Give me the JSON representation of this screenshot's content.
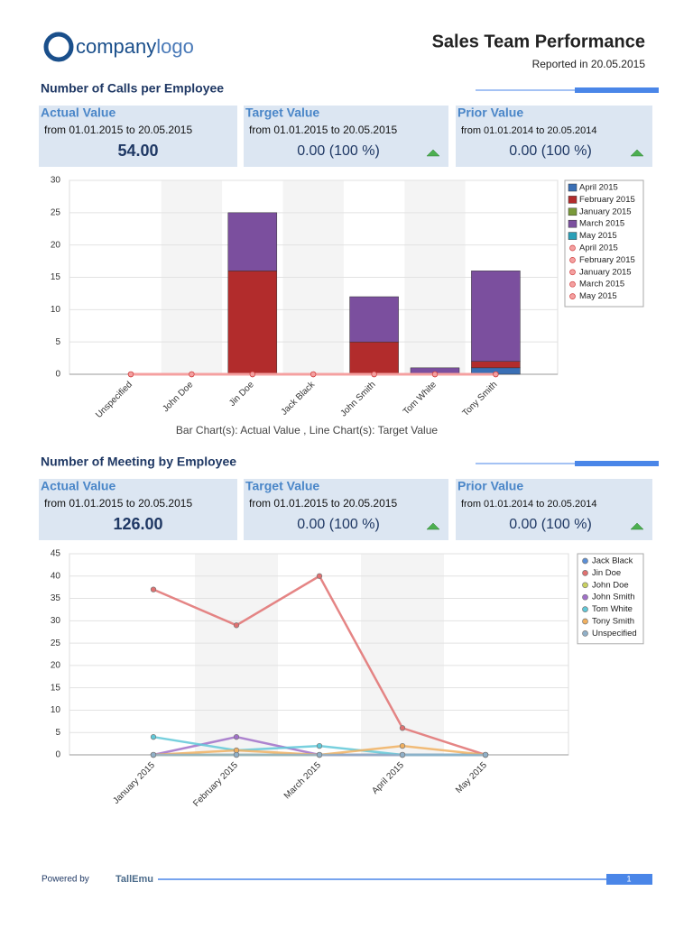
{
  "header": {
    "logo_primary": "company",
    "logo_secondary": "logo",
    "title": "Sales Team Performance",
    "reported": "Reported in 20.05.2015"
  },
  "sections": [
    {
      "title": "Number of Calls per Employee",
      "kpis": [
        {
          "label": "Actual Value",
          "range": "from 01.01.2015 to 20.05.2015",
          "value": "54.00"
        },
        {
          "label": "Target Value",
          "range": "from 01.01.2015 to 20.05.2015",
          "value": "0.00 (100 %)"
        },
        {
          "label": "Prior Value",
          "range": "from 01.01.2014 to 20.05.2014",
          "value": "0.00 (100 %)"
        }
      ]
    },
    {
      "title": "Number of Meeting by Employee",
      "kpis": [
        {
          "label": "Actual Value",
          "range": "from 01.01.2015 to 20.05.2015",
          "value": "126.00"
        },
        {
          "label": "Target Value",
          "range": "from 01.01.2015 to 20.05.2015",
          "value": "0.00 (100 %)"
        },
        {
          "label": "Prior Value",
          "range": "from 01.01.2014 to 20.05.2014",
          "value": "0.00 (100 %)"
        }
      ]
    }
  ],
  "chart_data": [
    {
      "type": "bar",
      "stacked": true,
      "caption": "Bar Chart(s): Actual Value , Line Chart(s): Target Value",
      "categories": [
        "Unspecified",
        "John Doe",
        "Jin Doe",
        "Jack Black",
        "John Smith",
        "Tom White",
        "Tony Smith"
      ],
      "series": [
        {
          "name": "April 2015",
          "type": "bar",
          "color": "#3a6fb5",
          "values": [
            0,
            0,
            0,
            0,
            0,
            0,
            1
          ]
        },
        {
          "name": "February 2015",
          "type": "bar",
          "color": "#b22c2c",
          "values": [
            0,
            0,
            16,
            0,
            5,
            0,
            1
          ]
        },
        {
          "name": "January 2015",
          "type": "bar",
          "color": "#7a9a3a",
          "values": [
            0,
            0,
            0,
            0,
            0,
            0,
            0
          ]
        },
        {
          "name": "March 2015",
          "type": "bar",
          "color": "#7b4f9e",
          "values": [
            0,
            0,
            9,
            0,
            7,
            1,
            14
          ]
        },
        {
          "name": "May 2015",
          "type": "bar",
          "color": "#2aa0b8",
          "values": [
            0,
            0,
            0,
            0,
            0,
            0,
            0
          ]
        },
        {
          "name": "April 2015",
          "type": "line",
          "color": "#f4a0a0",
          "values": [
            0,
            0,
            0,
            0,
            0,
            0,
            0
          ]
        },
        {
          "name": "February 2015",
          "type": "line",
          "color": "#f4a0a0",
          "values": [
            0,
            0,
            0,
            0,
            0,
            0,
            0
          ]
        },
        {
          "name": "January 2015",
          "type": "line",
          "color": "#f4a0a0",
          "values": [
            0,
            0,
            0,
            0,
            0,
            0,
            0
          ]
        },
        {
          "name": "March 2015",
          "type": "line",
          "color": "#f4a0a0",
          "values": [
            0,
            0,
            0,
            0,
            0,
            0,
            0
          ]
        },
        {
          "name": "May 2015",
          "type": "line",
          "color": "#f4a0a0",
          "values": [
            0,
            0,
            0,
            0,
            0,
            0,
            0
          ]
        }
      ],
      "ylim": [
        0,
        30
      ],
      "yticks": [
        0,
        5,
        10,
        15,
        20,
        25,
        30
      ],
      "grid": true,
      "legend": "upper right"
    },
    {
      "type": "line",
      "categories": [
        "January 2015",
        "February 2015",
        "March 2015",
        "April 2015",
        "May 2015"
      ],
      "series": [
        {
          "name": "Jack Black",
          "type": "line",
          "color": "#5b8fd6",
          "values": [
            0,
            0,
            0,
            0,
            0
          ]
        },
        {
          "name": "Jin Doe",
          "type": "line",
          "color": "#e07070",
          "values": [
            37,
            29,
            40,
            6,
            0
          ]
        },
        {
          "name": "John Doe",
          "type": "line",
          "color": "#c8d060",
          "values": [
            0,
            0,
            0,
            0,
            0
          ]
        },
        {
          "name": "John Smith",
          "type": "line",
          "color": "#a070c8",
          "values": [
            0,
            4,
            0,
            0,
            0
          ]
        },
        {
          "name": "Tom White",
          "type": "line",
          "color": "#60c8d8",
          "values": [
            4,
            1,
            2,
            0,
            0
          ]
        },
        {
          "name": "Tony Smith",
          "type": "line",
          "color": "#f0b060",
          "values": [
            0,
            1,
            0,
            2,
            0
          ]
        },
        {
          "name": "Unspecified",
          "type": "line",
          "color": "#90b0c8",
          "values": [
            0,
            0,
            0,
            0,
            0
          ]
        }
      ],
      "ylim": [
        0,
        45
      ],
      "yticks": [
        0,
        5,
        10,
        15,
        20,
        25,
        30,
        35,
        40,
        45
      ],
      "grid": true,
      "legend": "upper right"
    }
  ],
  "footer": {
    "powered_by": "Powered by",
    "brand": "TallEmu",
    "page": "1"
  }
}
